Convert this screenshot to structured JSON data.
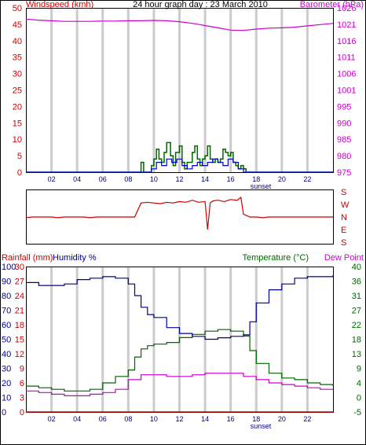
{
  "colors": {
    "wind": "#cc0000",
    "baro": "#cc00cc",
    "gust": "#006600",
    "avgwind": "#0000cc",
    "humidity": "#000099",
    "temp": "#006600",
    "dew": "#cc00cc",
    "rain": "#cc0000",
    "grid": "#cccccc"
  },
  "header": {
    "left_label": "Windspeed (kmh)",
    "center_title": "24 hour graph day : 23 March 2010",
    "right_label": "Barometer (hPa)"
  },
  "mid": {
    "compass": [
      "S",
      "E",
      "N",
      "W",
      "S"
    ]
  },
  "bottom": {
    "rain_label": "Rainfall (mm)",
    "humidity_label": "Humidity %",
    "temp_label": "Temperature (°C)",
    "dew_label": "Dew Point"
  },
  "chart_data": [
    {
      "type": "line",
      "name": "wind-baro",
      "x_ticks": [
        "02",
        "04",
        "06",
        "08",
        "10",
        "12",
        "14",
        "16",
        "18",
        "20",
        "22"
      ],
      "x_note": "sunset",
      "wind_ticks": [
        "0",
        "5",
        "10",
        "15",
        "20",
        "25",
        "30",
        "35",
        "40",
        "45",
        "50"
      ],
      "baro_ticks": [
        "975",
        "980",
        "985",
        "990",
        "995",
        "1001",
        "1006",
        "1011",
        "1016",
        "1021",
        "1026"
      ],
      "wind_ylim": [
        0,
        50
      ],
      "baro_ylim": [
        975,
        1026
      ],
      "barometer": {
        "x": [
          0,
          1,
          2,
          3,
          4,
          5,
          6,
          7,
          8,
          9,
          10,
          11,
          12,
          13,
          14,
          15,
          16,
          17,
          18,
          19,
          20,
          21,
          22,
          23,
          24
        ],
        "y": [
          1022.5,
          1022.2,
          1022.0,
          1021.8,
          1021.8,
          1021.8,
          1021.9,
          1021.9,
          1022.0,
          1022.0,
          1022.1,
          1022.0,
          1021.7,
          1021.2,
          1020.5,
          1019.8,
          1019.1,
          1019.0,
          1019.4,
          1019.7,
          1019.8,
          1020.0,
          1020.4,
          1020.8,
          1021.2
        ]
      },
      "gust": {
        "x": [
          0,
          8.9,
          9.0,
          9.2,
          9.3,
          9.6,
          9.8,
          10.0,
          10.2,
          10.4,
          10.6,
          10.8,
          11.0,
          11.3,
          11.5,
          11.7,
          12.0,
          12.2,
          12.4,
          12.6,
          13.0,
          13.2,
          13.4,
          13.6,
          13.8,
          14.0,
          14.2,
          14.4,
          14.6,
          14.8,
          15.0,
          15.2,
          15.4,
          15.6,
          15.8,
          16.0,
          16.2,
          16.4,
          16.6,
          16.8,
          17.0,
          17.2,
          24
        ],
        "y": [
          0,
          0,
          3,
          0,
          0,
          0,
          2,
          4,
          7,
          4,
          3,
          6,
          9,
          5,
          2,
          6,
          8,
          3,
          1,
          3,
          6,
          8,
          4,
          2,
          4,
          5,
          8,
          4,
          3,
          4,
          3,
          4,
          7,
          6,
          5,
          6,
          3,
          2,
          1,
          2,
          1,
          0,
          0
        ]
      },
      "avg_wind": {
        "x": [
          0,
          9.0,
          9.4,
          9.8,
          10.2,
          10.6,
          11.0,
          11.4,
          11.8,
          12.2,
          12.6,
          13.0,
          13.4,
          13.8,
          14.2,
          14.6,
          15.0,
          15.4,
          15.8,
          16.2,
          16.6,
          17.0,
          24
        ],
        "y": [
          0,
          0,
          0,
          1,
          3,
          2,
          4,
          3,
          4,
          2,
          1,
          2,
          3,
          2,
          3,
          4,
          3,
          2,
          4,
          3,
          1,
          0,
          0
        ]
      }
    },
    {
      "type": "line",
      "name": "wind-direction",
      "y_categories": [
        "S",
        "E",
        "N",
        "W",
        "S"
      ],
      "direction": {
        "x": [
          0,
          0.5,
          1.0,
          1.5,
          2.0,
          2.5,
          3.0,
          3.5,
          4.0,
          4.5,
          5.0,
          5.5,
          6.0,
          6.5,
          7.0,
          7.5,
          8.0,
          8.5,
          9.0,
          9.5,
          10.0,
          10.5,
          11.0,
          11.5,
          12.0,
          12.5,
          13.0,
          13.5,
          14.0,
          14.2,
          14.4,
          14.6,
          15.0,
          15.5,
          16.0,
          16.5,
          16.8,
          17.0,
          17.5,
          18.0,
          18.5,
          19.0,
          19.5,
          20.0,
          20.5,
          21.0,
          21.5,
          22.0,
          22.5,
          23.0,
          24.0
        ],
        "y": [
          175,
          180,
          180,
          180,
          180,
          175,
          180,
          180,
          180,
          180,
          175,
          180,
          180,
          180,
          180,
          180,
          180,
          180,
          280,
          285,
          280,
          275,
          285,
          280,
          290,
          285,
          300,
          285,
          290,
          90,
          280,
          295,
          300,
          290,
          305,
          300,
          320,
          200,
          180,
          180,
          175,
          180,
          180,
          180,
          180,
          180,
          180,
          180,
          180,
          180,
          180
        ]
      }
    },
    {
      "type": "line",
      "name": "temp-humidity",
      "x_ticks": [
        "02",
        "04",
        "06",
        "08",
        "10",
        "12",
        "14",
        "16",
        "18",
        "20",
        "22"
      ],
      "x_note": "sunset",
      "humidity_ticks": [
        "0",
        "10",
        "20",
        "30",
        "40",
        "50",
        "60",
        "70",
        "80",
        "90",
        "100"
      ],
      "rain_ticks": [
        "0",
        "3",
        "6",
        "9",
        "12",
        "15",
        "18",
        "21",
        "24",
        "27",
        "30"
      ],
      "temp_ticks": [
        "-5",
        "0",
        "4",
        "9",
        "13",
        "18",
        "22",
        "27",
        "31",
        "36",
        "40"
      ],
      "humidity_ylim": [
        0,
        100
      ],
      "temp_ylim": [
        -5,
        40
      ],
      "humidity": {
        "x": [
          0,
          1,
          2,
          3,
          4,
          5,
          6,
          7,
          8,
          8.5,
          9,
          9.5,
          10,
          11,
          12,
          13,
          14,
          15,
          16,
          17,
          17.5,
          18,
          19,
          20,
          21,
          22,
          23,
          24
        ],
        "y": [
          89,
          87,
          87,
          88,
          91,
          92,
          93,
          92,
          88,
          80,
          72,
          67,
          65,
          58,
          54,
          52,
          50,
          51,
          52,
          53,
          62,
          75,
          84,
          88,
          92,
          93,
          93,
          94
        ]
      },
      "temperature": {
        "x": [
          0,
          1,
          2,
          3,
          4,
          5,
          6,
          7,
          8,
          8.5,
          9,
          9.5,
          10,
          11,
          12,
          13,
          14,
          15,
          16,
          17,
          17.5,
          18,
          19,
          20,
          21,
          22,
          23,
          24
        ],
        "y": [
          3.0,
          2.5,
          2.0,
          1.5,
          1.5,
          2.0,
          4.0,
          6.0,
          8.0,
          12.0,
          14.5,
          15.5,
          16.0,
          16.5,
          18.0,
          19.0,
          20.0,
          20.5,
          20.0,
          18.5,
          14.0,
          10.0,
          7.0,
          5.5,
          5.0,
          4.0,
          3.5,
          3.0
        ]
      },
      "dew_point": {
        "x": [
          0,
          1,
          2,
          3,
          4,
          5,
          6,
          7,
          8,
          9,
          10,
          11,
          12,
          13,
          14,
          15,
          16,
          17,
          18,
          19,
          20,
          21,
          22,
          23,
          24
        ],
        "y": [
          1.5,
          1.0,
          0.5,
          0.0,
          0.0,
          0.5,
          1.0,
          2.0,
          5.0,
          6.5,
          6.5,
          6.0,
          6.0,
          6.5,
          7.0,
          7.0,
          7.0,
          6.0,
          5.0,
          4.0,
          3.5,
          3.0,
          2.5,
          2.0,
          2.0
        ]
      },
      "rainfall": {
        "x": [
          0,
          24
        ],
        "y": [
          0,
          0
        ]
      }
    }
  ]
}
